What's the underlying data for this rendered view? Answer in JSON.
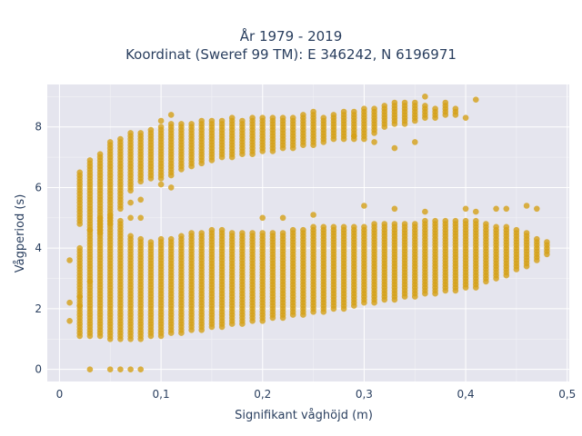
{
  "chart_data": {
    "type": "scatter",
    "title": "År 1979 - 2019",
    "subtitle": "Koordinat (Sweref 99 TM): E 346242, N 6196971",
    "xlabel": "Signifikant våghöjd (m)",
    "ylabel": "Vågperiod (s)",
    "xlim": [
      -0.012,
      0.502
    ],
    "ylim": [
      -0.4,
      9.4
    ],
    "x_ticks": [
      "0",
      "0,1",
      "0,2",
      "0,3",
      "0,4",
      "0,5"
    ],
    "x_tick_values": [
      0,
      0.1,
      0.2,
      0.3,
      0.4,
      0.5
    ],
    "y_ticks": [
      "0",
      "2",
      "4",
      "6",
      "8"
    ],
    "y_tick_values": [
      0,
      2,
      4,
      6,
      8
    ],
    "grid": true,
    "marker_color": "#d4a017",
    "plot_background": "#e5e5ee",
    "series": [
      {
        "values_band_upper": [
          [
            0.02,
            4.8,
            6.5
          ],
          [
            0.03,
            4.6,
            6.9
          ],
          [
            0.04,
            4.5,
            7.1
          ],
          [
            0.05,
            4.8,
            7.5
          ],
          [
            0.06,
            5.3,
            7.6
          ],
          [
            0.07,
            5.9,
            7.8
          ],
          [
            0.08,
            6.2,
            7.8
          ],
          [
            0.09,
            6.3,
            7.9
          ],
          [
            0.1,
            6.3,
            8.0
          ],
          [
            0.11,
            6.4,
            8.1
          ],
          [
            0.12,
            6.6,
            8.1
          ],
          [
            0.13,
            6.7,
            8.1
          ],
          [
            0.14,
            6.8,
            8.2
          ],
          [
            0.15,
            6.9,
            8.2
          ],
          [
            0.16,
            7.0,
            8.2
          ],
          [
            0.17,
            7.0,
            8.3
          ],
          [
            0.18,
            7.1,
            8.2
          ],
          [
            0.19,
            7.1,
            8.3
          ],
          [
            0.2,
            7.2,
            8.3
          ],
          [
            0.21,
            7.2,
            8.3
          ],
          [
            0.22,
            7.3,
            8.3
          ],
          [
            0.23,
            7.3,
            8.3
          ],
          [
            0.24,
            7.4,
            8.4
          ],
          [
            0.25,
            7.4,
            8.5
          ],
          [
            0.26,
            7.5,
            8.3
          ],
          [
            0.27,
            7.6,
            8.4
          ],
          [
            0.28,
            7.6,
            8.5
          ],
          [
            0.29,
            7.6,
            8.5
          ],
          [
            0.3,
            7.7,
            8.6
          ],
          [
            0.31,
            7.8,
            8.6
          ],
          [
            0.32,
            8.0,
            8.7
          ],
          [
            0.33,
            8.1,
            8.8
          ],
          [
            0.34,
            8.1,
            8.8
          ],
          [
            0.35,
            8.2,
            8.8
          ],
          [
            0.36,
            8.3,
            8.7
          ],
          [
            0.37,
            8.3,
            8.6
          ],
          [
            0.38,
            8.4,
            8.7
          ],
          [
            0.39,
            8.4,
            8.6
          ]
        ],
        "values_band_lower": [
          [
            0.01,
            3.6,
            3.6
          ],
          [
            0.02,
            1.1,
            4.0
          ],
          [
            0.03,
            1.1,
            4.6
          ],
          [
            0.04,
            1.1,
            5.0
          ],
          [
            0.05,
            1.0,
            5.1
          ],
          [
            0.06,
            1.0,
            4.9
          ],
          [
            0.07,
            1.0,
            4.4
          ],
          [
            0.08,
            1.0,
            4.3
          ],
          [
            0.09,
            1.1,
            4.2
          ],
          [
            0.1,
            1.1,
            4.3
          ],
          [
            0.11,
            1.2,
            4.3
          ],
          [
            0.12,
            1.2,
            4.4
          ],
          [
            0.13,
            1.3,
            4.5
          ],
          [
            0.14,
            1.3,
            4.5
          ],
          [
            0.15,
            1.4,
            4.6
          ],
          [
            0.16,
            1.4,
            4.6
          ],
          [
            0.17,
            1.5,
            4.5
          ],
          [
            0.18,
            1.5,
            4.5
          ],
          [
            0.19,
            1.6,
            4.5
          ],
          [
            0.2,
            1.6,
            4.5
          ],
          [
            0.21,
            1.7,
            4.5
          ],
          [
            0.22,
            1.7,
            4.5
          ],
          [
            0.23,
            1.8,
            4.6
          ],
          [
            0.24,
            1.8,
            4.6
          ],
          [
            0.25,
            1.9,
            4.7
          ],
          [
            0.26,
            1.9,
            4.7
          ],
          [
            0.27,
            2.0,
            4.7
          ],
          [
            0.28,
            2.0,
            4.7
          ],
          [
            0.29,
            2.1,
            4.7
          ],
          [
            0.3,
            2.2,
            4.7
          ],
          [
            0.31,
            2.2,
            4.8
          ],
          [
            0.32,
            2.3,
            4.8
          ],
          [
            0.33,
            2.3,
            4.8
          ],
          [
            0.34,
            2.4,
            4.8
          ],
          [
            0.35,
            2.4,
            4.8
          ],
          [
            0.36,
            2.5,
            4.9
          ],
          [
            0.37,
            2.5,
            4.9
          ],
          [
            0.38,
            2.6,
            4.9
          ],
          [
            0.39,
            2.6,
            4.9
          ],
          [
            0.4,
            2.7,
            4.9
          ],
          [
            0.41,
            2.7,
            4.9
          ],
          [
            0.42,
            2.9,
            4.8
          ],
          [
            0.43,
            3.0,
            4.7
          ],
          [
            0.44,
            3.1,
            4.7
          ],
          [
            0.45,
            3.3,
            4.6
          ],
          [
            0.46,
            3.4,
            4.5
          ],
          [
            0.47,
            3.6,
            4.3
          ],
          [
            0.48,
            3.8,
            4.2
          ]
        ],
        "values_zero": [
          [
            0.03,
            0
          ],
          [
            0.05,
            0
          ],
          [
            0.06,
            0
          ],
          [
            0.07,
            0
          ],
          [
            0.08,
            0
          ]
        ],
        "values_outliers": [
          [
            0.01,
            2.2
          ],
          [
            0.01,
            1.6
          ],
          [
            0.02,
            2.4
          ],
          [
            0.02,
            2.1
          ],
          [
            0.03,
            2.9
          ],
          [
            0.1,
            6.1
          ],
          [
            0.11,
            6.0
          ],
          [
            0.1,
            8.2
          ],
          [
            0.11,
            8.4
          ],
          [
            0.3,
            5.4
          ],
          [
            0.2,
            5.0
          ],
          [
            0.22,
            5.0
          ],
          [
            0.25,
            5.1
          ],
          [
            0.33,
            5.3
          ],
          [
            0.36,
            5.2
          ],
          [
            0.4,
            5.3
          ],
          [
            0.41,
            5.2
          ],
          [
            0.43,
            5.3
          ],
          [
            0.44,
            5.3
          ],
          [
            0.46,
            5.4
          ],
          [
            0.47,
            5.3
          ],
          [
            0.36,
            9.0
          ],
          [
            0.38,
            8.8
          ],
          [
            0.41,
            8.9
          ],
          [
            0.4,
            8.3
          ],
          [
            0.29,
            7.7
          ],
          [
            0.3,
            7.6
          ],
          [
            0.31,
            7.5
          ],
          [
            0.33,
            7.3
          ],
          [
            0.35,
            7.5
          ],
          [
            0.07,
            5.5
          ],
          [
            0.08,
            5.6
          ],
          [
            0.07,
            5.0
          ],
          [
            0.08,
            5.0
          ]
        ]
      }
    ]
  }
}
